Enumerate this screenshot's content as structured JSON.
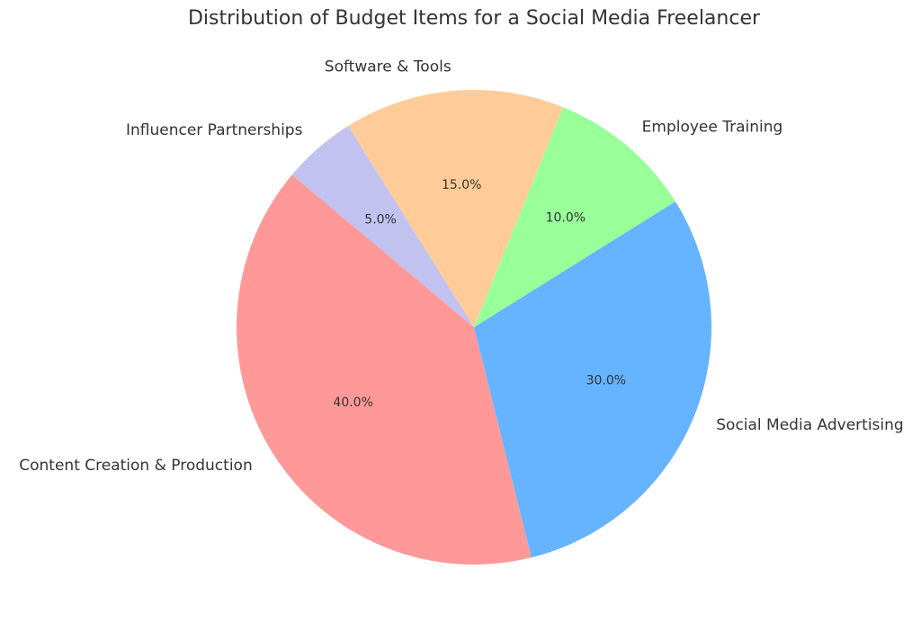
{
  "chart_data": {
    "type": "pie",
    "title": "Distribution of Budget Items for a Social Media Freelancer",
    "start_angle_deg": 140,
    "direction": "counterclockwise",
    "slices": [
      {
        "label": "Content Creation & Production",
        "value": 40.0,
        "pct_label": "40.0%",
        "color": "#ff9999"
      },
      {
        "label": "Social Media Advertising",
        "value": 30.0,
        "pct_label": "30.0%",
        "color": "#66b3ff"
      },
      {
        "label": "Employee Training",
        "value": 10.0,
        "pct_label": "10.0%",
        "color": "#99ff99"
      },
      {
        "label": "Software & Tools",
        "value": 15.0,
        "pct_label": "15.0%",
        "color": "#ffcc99"
      },
      {
        "label": "Influencer Partnerships",
        "value": 5.0,
        "pct_label": "5.0%",
        "color": "#c2c2f0"
      }
    ]
  }
}
